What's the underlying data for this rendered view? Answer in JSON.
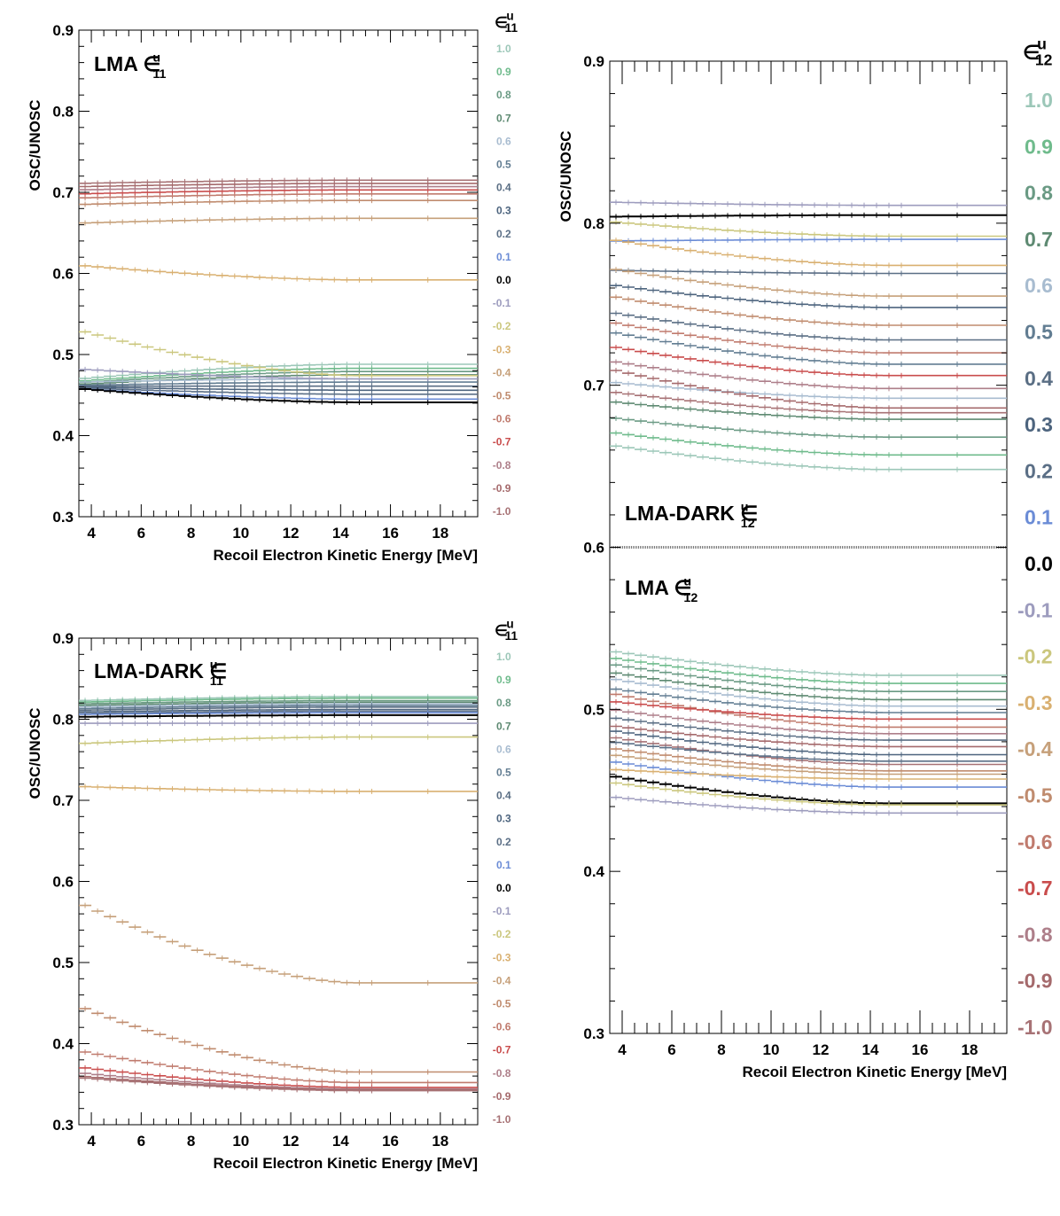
{
  "palette": {
    "1.0": "#9cc7b8",
    "0.9": "#6fbb8c",
    "0.8": "#6a9a84",
    "0.7": "#5e8a72",
    "0.6": "#a8bcd0",
    "0.5": "#627d92",
    "0.4": "#5a6e84",
    "0.3": "#4d647e",
    "0.2": "#5b6f86",
    "0.1": "#6b8cd6",
    "0.0": "#000000",
    "-0.1": "#9d9cbe",
    "-0.2": "#cbc77e",
    "-0.3": "#d9b071",
    "-0.4": "#c6a07a",
    "-0.5": "#c08c6f",
    "-0.6": "#c07b6e",
    "-0.7": "#c94c4c",
    "-0.8": "#ae7f8a",
    "-0.9": "#a56a6c",
    "-1.0": "#a77275"
  },
  "chart_data": [
    {
      "id": "tl",
      "type": "line",
      "title": "LMA ∈",
      "title_sup": "u",
      "title_sub": "11",
      "xlabel": "Recoil Electron Kinetic Energy [MeV]",
      "ylabel": "OSC/UNOSC",
      "xlim": [
        3.5,
        19.5
      ],
      "ylim": [
        0.3,
        0.9
      ],
      "x_ticks": [
        "4",
        "6",
        "8",
        "10",
        "12",
        "14",
        "16",
        "18"
      ],
      "y_ticks": [
        "0.3",
        "0.4",
        "0.5",
        "0.6",
        "0.7",
        "0.8",
        "0.9"
      ],
      "legend_title": "∈",
      "legend_sup": "u",
      "legend_sub": "11",
      "legend_labels": [
        "1.0",
        "0.9",
        "0.8",
        "0.7",
        "0.6",
        "0.5",
        "0.4",
        "0.3",
        "0.2",
        "0.1",
        "0.0",
        "-0.1",
        "-0.2",
        "-0.3",
        "-0.4",
        "-0.5",
        "-0.6",
        "-0.7",
        "-0.8",
        "-0.9",
        "-1.0"
      ],
      "series": [
        {
          "name": "1.0",
          "start": 0.47,
          "end": 0.488
        },
        {
          "name": "0.9",
          "start": 0.467,
          "end": 0.483
        },
        {
          "name": "0.8",
          "start": 0.465,
          "end": 0.479
        },
        {
          "name": "0.7",
          "start": 0.463,
          "end": 0.475
        },
        {
          "name": "0.6",
          "start": 0.466,
          "end": 0.47
        },
        {
          "name": "0.5",
          "start": 0.462,
          "end": 0.466
        },
        {
          "name": "0.4",
          "start": 0.461,
          "end": 0.461
        },
        {
          "name": "0.3",
          "start": 0.46,
          "end": 0.456
        },
        {
          "name": "0.2",
          "start": 0.459,
          "end": 0.451
        },
        {
          "name": "0.1",
          "start": 0.458,
          "end": 0.445
        },
        {
          "name": "0.0",
          "start": 0.458,
          "end": 0.441
        },
        {
          "name": "-0.1",
          "start": 0.482,
          "end": 0.47
        },
        {
          "name": "-0.2",
          "start": 0.53,
          "end": 0.474
        },
        {
          "name": "-0.3",
          "start": 0.61,
          "end": 0.592
        },
        {
          "name": "-0.4",
          "start": 0.662,
          "end": 0.668
        },
        {
          "name": "-0.5",
          "start": 0.685,
          "end": 0.69
        },
        {
          "name": "-0.6",
          "start": 0.693,
          "end": 0.698
        },
        {
          "name": "-0.7",
          "start": 0.698,
          "end": 0.703
        },
        {
          "name": "-0.8",
          "start": 0.703,
          "end": 0.707
        },
        {
          "name": "-0.9",
          "start": 0.707,
          "end": 0.711
        },
        {
          "name": "-1.0",
          "start": 0.711,
          "end": 0.715
        }
      ]
    },
    {
      "id": "bl",
      "type": "line",
      "title": "LMA-DARK ∈",
      "title_sup": "u",
      "title_sub": "11",
      "xlabel": "Recoil Electron Kinetic Energy [MeV]",
      "ylabel": "OSC/UNOSC",
      "xlim": [
        3.5,
        19.5
      ],
      "ylim": [
        0.3,
        0.9
      ],
      "x_ticks": [
        "4",
        "6",
        "8",
        "10",
        "12",
        "14",
        "16",
        "18"
      ],
      "y_ticks": [
        "0.3",
        "0.4",
        "0.5",
        "0.6",
        "0.7",
        "0.8",
        "0.9"
      ],
      "legend_title": "∈",
      "legend_sup": "u",
      "legend_sub": "11",
      "legend_labels": [
        "1.0",
        "0.9",
        "0.8",
        "0.7",
        "0.6",
        "0.5",
        "0.4",
        "0.3",
        "0.2",
        "0.1",
        "0.0",
        "-0.1",
        "-0.2",
        "-0.3",
        "-0.4",
        "-0.5",
        "-0.6",
        "-0.7",
        "-0.8",
        "-0.9",
        "-1.0"
      ],
      "series": [
        {
          "name": "1.0",
          "start": 0.823,
          "end": 0.828
        },
        {
          "name": "0.9",
          "start": 0.821,
          "end": 0.826
        },
        {
          "name": "0.8",
          "start": 0.819,
          "end": 0.823
        },
        {
          "name": "0.7",
          "start": 0.817,
          "end": 0.821
        },
        {
          "name": "0.6",
          "start": 0.815,
          "end": 0.819
        },
        {
          "name": "0.5",
          "start": 0.813,
          "end": 0.817
        },
        {
          "name": "0.4",
          "start": 0.811,
          "end": 0.815
        },
        {
          "name": "0.3",
          "start": 0.809,
          "end": 0.812
        },
        {
          "name": "0.2",
          "start": 0.807,
          "end": 0.81
        },
        {
          "name": "0.1",
          "start": 0.806,
          "end": 0.808
        },
        {
          "name": "0.0",
          "start": 0.803,
          "end": 0.805
        },
        {
          "name": "-0.1",
          "start": 0.795,
          "end": 0.795
        },
        {
          "name": "-0.2",
          "start": 0.77,
          "end": 0.778
        },
        {
          "name": "-0.3",
          "start": 0.717,
          "end": 0.711
        },
        {
          "name": "-0.4",
          "start": 0.574,
          "end": 0.475
        },
        {
          "name": "-0.5",
          "start": 0.446,
          "end": 0.365
        },
        {
          "name": "-0.6",
          "start": 0.391,
          "end": 0.352
        },
        {
          "name": "-0.7",
          "start": 0.371,
          "end": 0.346
        },
        {
          "name": "-0.8",
          "start": 0.364,
          "end": 0.344
        },
        {
          "name": "-0.9",
          "start": 0.36,
          "end": 0.343
        },
        {
          "name": "-1.0",
          "start": 0.358,
          "end": 0.342
        }
      ]
    },
    {
      "id": "r",
      "type": "line",
      "title": "LMA-DARK ∈",
      "title_sup": "u",
      "title_sub": "12",
      "title2": "LMA ∈",
      "title2_sup": "u",
      "title2_sub": "12",
      "xlabel": "Recoil Electron Kinetic Energy [MeV]",
      "ylabel": "OSC/UNOSC",
      "xlim": [
        3.5,
        19.5
      ],
      "ylim": [
        0.3,
        0.9
      ],
      "x_ticks": [
        "4",
        "6",
        "8",
        "10",
        "12",
        "14",
        "16",
        "18"
      ],
      "y_ticks": [
        "0.3",
        "0.4",
        "0.5",
        "0.6",
        "0.7",
        "0.8",
        "0.9"
      ],
      "legend_title": "∈",
      "legend_sup": "u",
      "legend_sub": "12",
      "legend_labels": [
        "1.0",
        "0.9",
        "0.8",
        "0.7",
        "0.6",
        "0.5",
        "0.4",
        "0.3",
        "0.2",
        "0.1",
        "0.0",
        "-0.1",
        "-0.2",
        "-0.3",
        "-0.4",
        "-0.5",
        "-0.6",
        "-0.7",
        "-0.8",
        "-0.9",
        "-1.0"
      ],
      "series_dark": [
        {
          "name": "-0.1",
          "start": 0.813,
          "end": 0.811
        },
        {
          "name": "0.0",
          "start": 0.804,
          "end": 0.805
        },
        {
          "name": "-0.2",
          "start": 0.801,
          "end": 0.792
        },
        {
          "name": "0.1",
          "start": 0.789,
          "end": 0.79
        },
        {
          "name": "-0.3",
          "start": 0.79,
          "end": 0.774
        },
        {
          "name": "0.2",
          "start": 0.771,
          "end": 0.769
        },
        {
          "name": "-0.4",
          "start": 0.772,
          "end": 0.755
        },
        {
          "name": "0.3",
          "start": 0.762,
          "end": 0.748
        },
        {
          "name": "-0.5",
          "start": 0.755,
          "end": 0.737
        },
        {
          "name": "0.4",
          "start": 0.745,
          "end": 0.728
        },
        {
          "name": "-0.6",
          "start": 0.739,
          "end": 0.72
        },
        {
          "name": "0.5",
          "start": 0.733,
          "end": 0.713
        },
        {
          "name": "-0.7",
          "start": 0.724,
          "end": 0.706
        },
        {
          "name": "-0.8",
          "start": 0.715,
          "end": 0.698
        },
        {
          "name": "0.6",
          "start": 0.702,
          "end": 0.692
        },
        {
          "name": "-0.9",
          "start": 0.71,
          "end": 0.686
        },
        {
          "name": "0.7",
          "start": 0.69,
          "end": 0.679
        },
        {
          "name": "-1.0",
          "start": 0.696,
          "end": 0.683
        },
        {
          "name": "0.8",
          "start": 0.68,
          "end": 0.668
        },
        {
          "name": "0.9",
          "start": 0.671,
          "end": 0.657
        },
        {
          "name": "1.0",
          "start": 0.663,
          "end": 0.648
        }
      ],
      "series_lma": [
        {
          "name": "1.0",
          "start": 0.536,
          "end": 0.521
        },
        {
          "name": "0.9",
          "start": 0.532,
          "end": 0.516
        },
        {
          "name": "0.8",
          "start": 0.528,
          "end": 0.511
        },
        {
          "name": "0.7",
          "start": 0.523,
          "end": 0.506
        },
        {
          "name": "0.6",
          "start": 0.519,
          "end": 0.502
        },
        {
          "name": "0.5",
          "start": 0.513,
          "end": 0.498
        },
        {
          "name": "-0.6",
          "start": 0.51,
          "end": 0.489
        },
        {
          "name": "-0.7",
          "start": 0.505,
          "end": 0.494
        },
        {
          "name": "-0.8",
          "start": 0.5,
          "end": 0.485
        },
        {
          "name": "0.4",
          "start": 0.495,
          "end": 0.481
        },
        {
          "name": "-0.9",
          "start": 0.49,
          "end": 0.477
        },
        {
          "name": "0.3",
          "start": 0.487,
          "end": 0.472
        },
        {
          "name": "-1.0",
          "start": 0.483,
          "end": 0.466
        },
        {
          "name": "0.2",
          "start": 0.48,
          "end": 0.468
        },
        {
          "name": "-0.5",
          "start": 0.476,
          "end": 0.462
        },
        {
          "name": "-0.4",
          "start": 0.472,
          "end": 0.46
        },
        {
          "name": "0.1",
          "start": 0.468,
          "end": 0.452
        },
        {
          "name": "-0.3",
          "start": 0.463,
          "end": 0.457
        },
        {
          "name": "0.0",
          "start": 0.459,
          "end": 0.442
        },
        {
          "name": "-0.2",
          "start": 0.455,
          "end": 0.441
        },
        {
          "name": "-0.1",
          "start": 0.446,
          "end": 0.436
        }
      ]
    }
  ]
}
